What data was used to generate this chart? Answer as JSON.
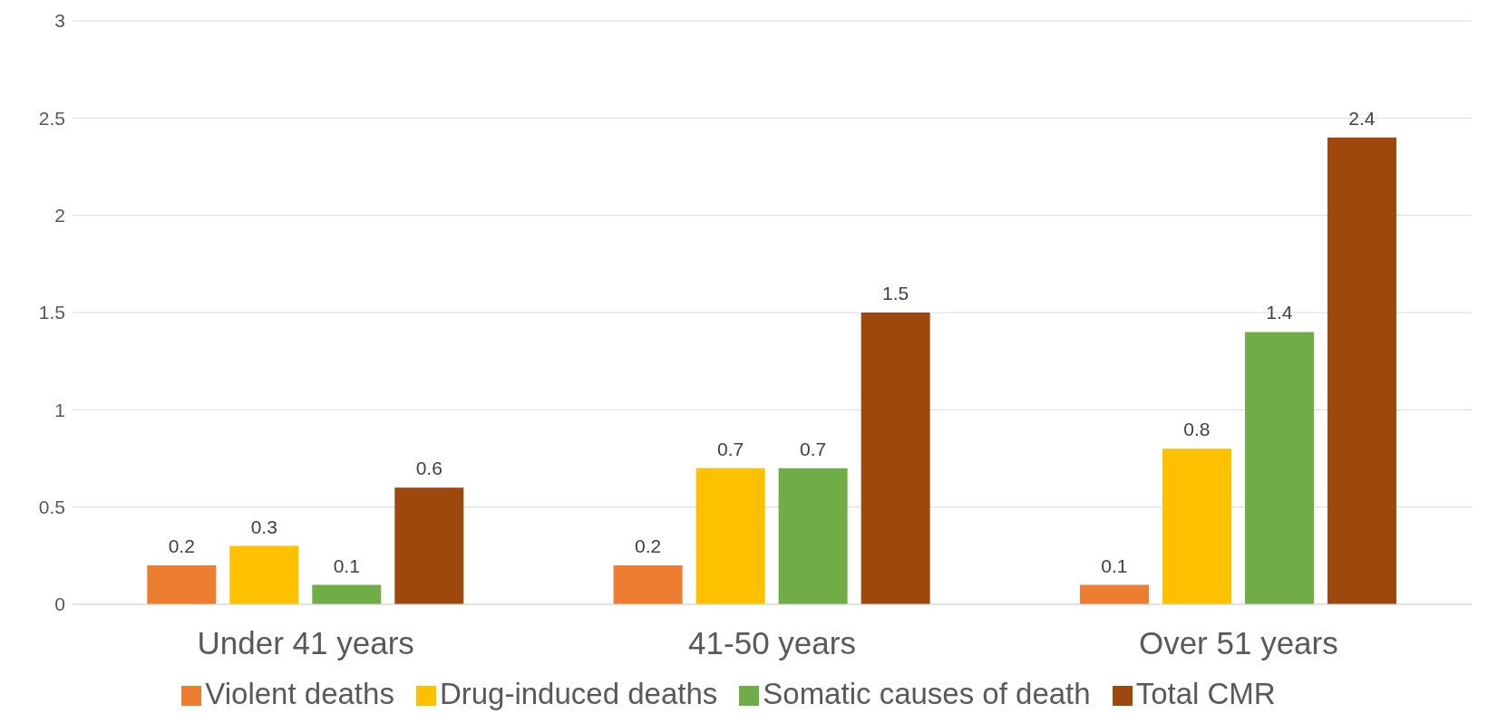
{
  "chart_data": {
    "type": "bar",
    "categories": [
      "Under 41 years",
      "41-50 years",
      "Over 51  years"
    ],
    "series": [
      {
        "name": "Violent deaths",
        "color": "#ed7d31",
        "values": [
          0.2,
          0.2,
          0.1
        ]
      },
      {
        "name": "Drug-induced deaths",
        "color": "#ffc000",
        "values": [
          0.3,
          0.7,
          0.8
        ]
      },
      {
        "name": "Somatic causes of death",
        "color": "#70ad47",
        "values": [
          0.1,
          0.7,
          1.4
        ]
      },
      {
        "name": "Total CMR",
        "color": "#9e480e",
        "values": [
          0.6,
          1.5,
          2.4
        ]
      }
    ],
    "ylim": [
      0,
      3
    ],
    "yticks": [
      0,
      0.5,
      1,
      1.5,
      2,
      2.5,
      3
    ],
    "grid": "y",
    "legend": "bottom",
    "data_labels": true
  }
}
